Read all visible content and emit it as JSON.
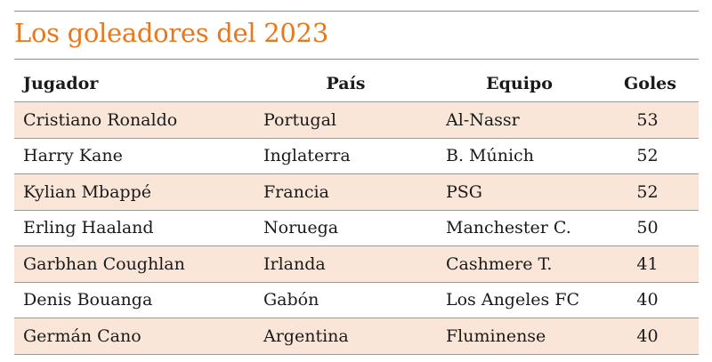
{
  "title": "Los goleadores del 2023",
  "columns": {
    "player": "Jugador",
    "country": "País",
    "team": "Equipo",
    "goals": "Goles"
  },
  "rows": [
    {
      "player": "Cristiano Ronaldo",
      "country": "Portugal",
      "team": "Al-Nassr",
      "goals": "53"
    },
    {
      "player": "Harry Kane",
      "country": "Inglaterra",
      "team": "B. Múnich",
      "goals": "52"
    },
    {
      "player": "Kylian Mbappé",
      "country": "Francia",
      "team": "PSG",
      "goals": "52"
    },
    {
      "player": "Erling Haaland",
      "country": "Noruega",
      "team": "Manchester C.",
      "goals": "50"
    },
    {
      "player": "Garbhan Coughlan",
      "country": "Irlanda",
      "team": "Cashmere T.",
      "goals": "41"
    },
    {
      "player": "Denis Bouanga",
      "country": "Gabón",
      "team": "Los Angeles FC",
      "goals": "40"
    },
    {
      "player": "Germán Cano",
      "country": "Argentina",
      "team": "Fluminense",
      "goals": "40"
    }
  ],
  "colors": {
    "title": "#e8771e",
    "row_shade": "#fae6d8",
    "rule": "#8c8c8c",
    "text": "#1a1a1a"
  }
}
